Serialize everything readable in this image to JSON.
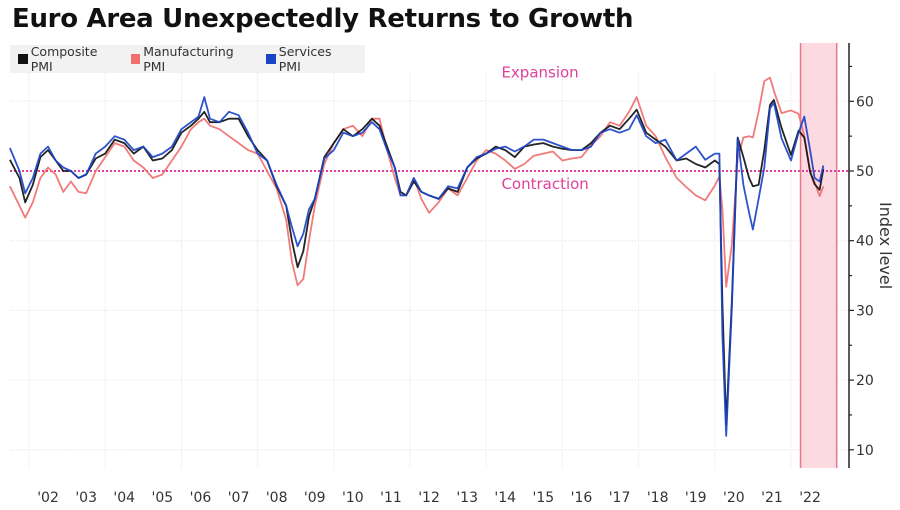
{
  "chart_data": {
    "type": "line",
    "title": "Euro Area Unexpectedly Returns to Growth",
    "xlabel": "",
    "ylabel": "Index level",
    "y_axis_position": "right",
    "ylim": [
      8,
      68
    ],
    "yticks": [
      10,
      20,
      30,
      40,
      50,
      60
    ],
    "xlim": [
      2001.5,
      2023.1
    ],
    "xticks": [
      {
        "year": 2002,
        "label": "'02"
      },
      {
        "year": 2003,
        "label": "'03"
      },
      {
        "year": 2004,
        "label": "'04"
      },
      {
        "year": 2005,
        "label": "'05"
      },
      {
        "year": 2006,
        "label": "'06"
      },
      {
        "year": 2007,
        "label": "'07"
      },
      {
        "year": 2008,
        "label": "'08"
      },
      {
        "year": 2009,
        "label": "'09"
      },
      {
        "year": 2010,
        "label": "'10"
      },
      {
        "year": 2011,
        "label": "'11"
      },
      {
        "year": 2012,
        "label": "'12"
      },
      {
        "year": 2013,
        "label": "'13"
      },
      {
        "year": 2014,
        "label": "'14"
      },
      {
        "year": 2015,
        "label": "'15"
      },
      {
        "year": 2016,
        "label": "'16"
      },
      {
        "year": 2017,
        "label": "'17"
      },
      {
        "year": 2018,
        "label": "'18"
      },
      {
        "year": 2019,
        "label": "'19"
      },
      {
        "year": 2020,
        "label": "'20"
      },
      {
        "year": 2021,
        "label": "'21"
      },
      {
        "year": 2022,
        "label": "'22"
      }
    ],
    "grid": true,
    "legend_position": "top-left",
    "reference_line": {
      "value": 50,
      "color": "#e0409a",
      "style": "dotted"
    },
    "annotations": [
      {
        "text": "Expansion",
        "x": 2014.4,
        "y": 62,
        "color": "#e0409a"
      },
      {
        "text": "Contraction",
        "x": 2014.4,
        "y": 46,
        "color": "#e0409a"
      }
    ],
    "shaded_region": {
      "x_start": 2022.25,
      "x_end": 2023.2,
      "color": "#fdd9e1",
      "edge_color": "#e8788c"
    },
    "x": [
      2001.5,
      2001.75,
      2001.9,
      2002.1,
      2002.3,
      2002.5,
      2002.7,
      2002.9,
      2003.1,
      2003.3,
      2003.5,
      2003.75,
      2004.0,
      2004.25,
      2004.5,
      2004.75,
      2005.0,
      2005.25,
      2005.5,
      2005.75,
      2006.0,
      2006.25,
      2006.45,
      2006.6,
      2006.75,
      2007.0,
      2007.25,
      2007.5,
      2007.75,
      2008.0,
      2008.25,
      2008.5,
      2008.75,
      2008.9,
      2009.05,
      2009.2,
      2009.35,
      2009.5,
      2009.75,
      2010.0,
      2010.25,
      2010.5,
      2010.75,
      2011.0,
      2011.2,
      2011.4,
      2011.6,
      2011.75,
      2011.9,
      2012.1,
      2012.3,
      2012.5,
      2012.75,
      2013.0,
      2013.25,
      2013.5,
      2013.75,
      2014.0,
      2014.25,
      2014.5,
      2014.75,
      2015.0,
      2015.25,
      2015.5,
      2015.75,
      2016.0,
      2016.25,
      2016.5,
      2016.75,
      2017.0,
      2017.25,
      2017.5,
      2017.75,
      2017.95,
      2018.2,
      2018.45,
      2018.7,
      2019.0,
      2019.25,
      2019.5,
      2019.75,
      2020.0,
      2020.12,
      2020.2,
      2020.3,
      2020.45,
      2020.6,
      2020.75,
      2020.9,
      2021.0,
      2021.15,
      2021.3,
      2021.45,
      2021.55,
      2021.75,
      2022.0,
      2022.2,
      2022.35,
      2022.5,
      2022.62,
      2022.75,
      2022.85
    ],
    "series": [
      {
        "name": "Composite PMI",
        "color": "#111111",
        "values": [
          51.6,
          49.0,
          45.5,
          48.0,
          52.0,
          53.0,
          51.5,
          50.0,
          50.0,
          49.0,
          49.5,
          51.8,
          52.5,
          54.5,
          54.0,
          52.5,
          53.5,
          51.5,
          51.8,
          53.0,
          55.5,
          56.5,
          57.5,
          58.5,
          57.0,
          57.0,
          57.5,
          57.5,
          55.0,
          53.0,
          51.5,
          47.8,
          45.0,
          40.0,
          36.2,
          38.5,
          43.5,
          46.0,
          52.0,
          54.0,
          56.0,
          55.0,
          56.0,
          57.5,
          56.5,
          53.5,
          50.5,
          47.0,
          46.5,
          48.5,
          47.0,
          46.5,
          46.0,
          47.5,
          47.0,
          50.5,
          51.8,
          52.5,
          53.5,
          53.0,
          52.0,
          53.5,
          53.8,
          54.0,
          53.5,
          53.2,
          53.0,
          53.0,
          54.0,
          55.5,
          56.5,
          56.0,
          57.5,
          58.8,
          55.5,
          54.5,
          53.5,
          51.5,
          51.8,
          51.0,
          50.5,
          51.5,
          51.0,
          31.0,
          13.6,
          31.5,
          54.8,
          52.0,
          49.0,
          47.8,
          48.0,
          53.0,
          59.5,
          60.2,
          56.2,
          52.3,
          55.8,
          54.8,
          49.9,
          48.1,
          47.3,
          50.3
        ]
      },
      {
        "name": "Manufacturing PMI",
        "color": "#f07070",
        "values": [
          47.8,
          45.0,
          43.3,
          45.5,
          49.0,
          50.5,
          49.5,
          47.0,
          48.5,
          47.0,
          46.8,
          50.0,
          52.0,
          54.0,
          53.5,
          51.5,
          50.5,
          49.0,
          49.5,
          51.5,
          53.5,
          56.0,
          57.0,
          57.5,
          56.5,
          56.0,
          55.0,
          54.0,
          53.0,
          52.5,
          50.0,
          47.5,
          43.0,
          37.0,
          33.6,
          34.5,
          40.0,
          45.0,
          51.0,
          54.0,
          56.0,
          56.5,
          55.0,
          57.5,
          57.5,
          53.0,
          49.0,
          46.5,
          46.5,
          49.0,
          46.0,
          44.0,
          45.5,
          47.5,
          46.5,
          49.0,
          51.5,
          53.0,
          52.5,
          51.5,
          50.3,
          51.0,
          52.2,
          52.5,
          52.8,
          51.5,
          51.8,
          52.0,
          53.7,
          55.0,
          57.0,
          56.5,
          58.5,
          60.6,
          56.5,
          55.0,
          52.0,
          49.0,
          47.7,
          46.5,
          45.8,
          47.9,
          49.2,
          44.5,
          33.4,
          39.5,
          51.8,
          54.8,
          55.0,
          54.8,
          58.5,
          62.9,
          63.4,
          61.5,
          58.3,
          58.7,
          58.2,
          55.0,
          49.8,
          48.4,
          46.4,
          47.8
        ]
      },
      {
        "name": "Services PMI",
        "color": "#1a44c8",
        "values": [
          53.3,
          50.0,
          46.8,
          49.0,
          52.5,
          53.5,
          51.5,
          50.5,
          50.0,
          49.0,
          49.5,
          52.5,
          53.5,
          55.0,
          54.5,
          53.0,
          53.5,
          52.0,
          52.5,
          53.5,
          56.0,
          57.0,
          57.8,
          60.6,
          57.5,
          57.0,
          58.5,
          58.0,
          55.5,
          52.5,
          51.5,
          48.0,
          45.0,
          42.0,
          39.2,
          41.0,
          44.5,
          46.0,
          51.8,
          53.0,
          55.5,
          55.0,
          55.5,
          57.0,
          56.0,
          53.0,
          50.5,
          46.5,
          46.5,
          49.0,
          47.0,
          46.5,
          46.0,
          47.8,
          47.5,
          50.5,
          52.0,
          52.5,
          53.2,
          53.5,
          52.8,
          53.5,
          54.5,
          54.5,
          54.0,
          53.5,
          53.0,
          53.0,
          53.5,
          55.5,
          56.0,
          55.5,
          56.0,
          58.0,
          55.0,
          54.0,
          54.5,
          51.5,
          52.5,
          53.5,
          51.6,
          52.5,
          52.5,
          26.4,
          12.0,
          30.5,
          54.7,
          48.0,
          44.0,
          41.6,
          46.0,
          50.5,
          59.0,
          59.8,
          54.7,
          51.5,
          55.5,
          57.8,
          53.0,
          49.0,
          48.5,
          50.8
        ]
      }
    ]
  }
}
